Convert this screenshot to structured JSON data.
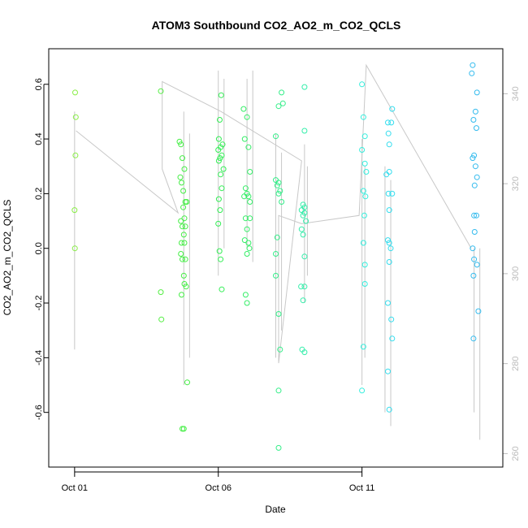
{
  "chart_data": {
    "type": "scatter",
    "title": "ATOM3 Southbound CO2_AO2_m_CO2_QCLS",
    "xlabel": "Date",
    "ylabel": "CO2_AO2_m_CO2_QCLS",
    "x_ticks": [
      {
        "day": 1,
        "label": "Oct 01"
      },
      {
        "day": 6,
        "label": "Oct 06"
      },
      {
        "day": 11,
        "label": "Oct 11"
      }
    ],
    "xlim_day": [
      0.1,
      15.9
    ],
    "ylim": [
      -0.8,
      0.73
    ],
    "y_ticks": [
      -0.6,
      -0.4,
      -0.2,
      0.0,
      0.2,
      0.4,
      0.6
    ],
    "y_tick_labels": [
      "-0.6",
      "-0.4",
      "-0.2",
      "0.0",
      "0.2",
      "0.4",
      "0.6"
    ],
    "right_axis": {
      "ylim": [
        257,
        350
      ],
      "ticks": [
        260,
        280,
        300,
        320,
        340
      ],
      "tick_labels": [
        "260",
        "280",
        "300",
        "320",
        "340"
      ],
      "color": "#bbbbbb"
    },
    "grid": false,
    "legend": "none",
    "overlay_line": {
      "color": "#c8c8c8",
      "points": [
        [
          1.05,
          0.43
        ],
        [
          4.6,
          0.13
        ],
        [
          4.05,
          0.29
        ],
        [
          4.05,
          0.61
        ],
        [
          6.1,
          0.5
        ],
        [
          8.9,
          0.32
        ],
        [
          8.1,
          -0.42
        ],
        [
          8.1,
          0.12
        ],
        [
          8.9,
          0.09
        ],
        [
          10.9,
          0.12
        ],
        [
          11.15,
          0.67
        ],
        [
          14.8,
          0.0
        ]
      ],
      "spikes": [
        {
          "day": 1.0,
          "low": -0.37,
          "high": 0.5
        },
        {
          "day": 4.8,
          "low": -0.5,
          "high": 0.5
        },
        {
          "day": 5.0,
          "low": -0.4,
          "high": 0.42
        },
        {
          "day": 6.0,
          "low": -0.1,
          "high": 0.65
        },
        {
          "day": 6.2,
          "low": 0.0,
          "high": 0.62
        },
        {
          "day": 7.0,
          "low": 0.0,
          "high": 0.62
        },
        {
          "day": 7.2,
          "low": -0.05,
          "high": 0.65
        },
        {
          "day": 8.0,
          "low": -0.4,
          "high": 0.42
        },
        {
          "day": 8.2,
          "low": -0.3,
          "high": 0.35
        },
        {
          "day": 9.0,
          "low": -0.2,
          "high": 0.38
        },
        {
          "day": 9.1,
          "low": -0.1,
          "high": 0.3
        },
        {
          "day": 11.0,
          "low": -0.5,
          "high": 0.4
        },
        {
          "day": 11.1,
          "low": -0.4,
          "high": 0.3
        },
        {
          "day": 11.8,
          "low": -0.6,
          "high": 0.3
        },
        {
          "day": 12.0,
          "low": -0.65,
          "high": 0.25
        },
        {
          "day": 14.9,
          "low": -0.6,
          "high": 0.0
        },
        {
          "day": 15.1,
          "low": -0.7,
          "high": 0.0
        }
      ]
    },
    "groups": [
      {
        "color": "#88ee44",
        "points": [
          [
            1.02,
            0.57
          ],
          [
            1.04,
            0.48
          ],
          [
            1.03,
            0.34
          ],
          [
            1.0,
            0.14
          ],
          [
            1.01,
            0.0
          ]
        ]
      },
      {
        "color": "#55ee44",
        "points": [
          [
            4.0,
            0.575
          ],
          [
            4.0,
            -0.16
          ],
          [
            4.02,
            -0.26
          ]
        ]
      },
      {
        "color": "#44ee44",
        "points": [
          [
            4.65,
            0.39
          ],
          [
            4.7,
            0.38
          ],
          [
            4.75,
            0.33
          ],
          [
            4.82,
            0.29
          ],
          [
            4.68,
            0.26
          ],
          [
            4.72,
            0.24
          ],
          [
            4.78,
            0.21
          ],
          [
            4.85,
            0.17
          ],
          [
            4.9,
            0.17
          ],
          [
            4.78,
            0.15
          ],
          [
            4.82,
            0.11
          ],
          [
            4.7,
            0.1
          ],
          [
            4.75,
            0.08
          ],
          [
            4.85,
            0.08
          ],
          [
            4.8,
            0.05
          ],
          [
            4.72,
            0.02
          ],
          [
            4.82,
            0.02
          ],
          [
            4.7,
            -0.02
          ],
          [
            4.75,
            -0.04
          ],
          [
            4.85,
            -0.04
          ],
          [
            4.8,
            -0.1
          ],
          [
            4.82,
            -0.13
          ],
          [
            4.88,
            -0.14
          ],
          [
            4.72,
            -0.17
          ],
          [
            4.92,
            -0.49
          ],
          [
            4.75,
            -0.66
          ],
          [
            4.8,
            -0.66
          ]
        ]
      },
      {
        "color": "#33ee55",
        "points": [
          [
            6.1,
            0.56
          ],
          [
            6.05,
            0.47
          ],
          [
            6.02,
            0.4
          ],
          [
            6.15,
            0.38
          ],
          [
            6.08,
            0.37
          ],
          [
            6.0,
            0.36
          ],
          [
            6.12,
            0.34
          ],
          [
            6.06,
            0.33
          ],
          [
            6.02,
            0.32
          ],
          [
            6.18,
            0.29
          ],
          [
            6.08,
            0.27
          ],
          [
            6.12,
            0.22
          ],
          [
            6.02,
            0.18
          ],
          [
            6.06,
            0.14
          ],
          [
            6.0,
            0.09
          ],
          [
            6.04,
            -0.01
          ],
          [
            6.08,
            -0.04
          ],
          [
            6.12,
            -0.15
          ]
        ]
      },
      {
        "color": "#33ee66",
        "points": [
          [
            6.88,
            0.51
          ],
          [
            7.0,
            0.48
          ],
          [
            6.92,
            0.4
          ],
          [
            7.05,
            0.37
          ],
          [
            7.1,
            0.28
          ],
          [
            6.95,
            0.22
          ],
          [
            7.0,
            0.2
          ],
          [
            6.9,
            0.19
          ],
          [
            7.05,
            0.19
          ],
          [
            7.1,
            0.17
          ],
          [
            6.95,
            0.11
          ],
          [
            7.1,
            0.11
          ],
          [
            7.0,
            0.07
          ],
          [
            6.92,
            0.03
          ],
          [
            7.05,
            0.02
          ],
          [
            7.08,
            0.0
          ],
          [
            7.0,
            -0.02
          ],
          [
            6.95,
            -0.17
          ],
          [
            7.0,
            -0.2
          ]
        ]
      },
      {
        "color": "#33ee88",
        "points": [
          [
            8.2,
            0.57
          ],
          [
            8.1,
            0.52
          ],
          [
            8.25,
            0.53
          ],
          [
            8.0,
            0.41
          ],
          [
            8.0,
            0.25
          ],
          [
            8.1,
            0.24
          ],
          [
            8.05,
            0.23
          ],
          [
            8.15,
            0.21
          ],
          [
            8.1,
            0.2
          ],
          [
            8.2,
            0.17
          ],
          [
            8.05,
            0.04
          ],
          [
            8.0,
            -0.02
          ],
          [
            8.0,
            -0.1
          ],
          [
            8.1,
            -0.24
          ],
          [
            8.15,
            -0.37
          ],
          [
            8.1,
            -0.52
          ],
          [
            8.1,
            -0.73
          ]
        ]
      },
      {
        "color": "#33eeaa",
        "points": [
          [
            9.0,
            0.59
          ],
          [
            9.0,
            0.43
          ],
          [
            8.95,
            0.16
          ],
          [
            9.0,
            0.15
          ],
          [
            8.9,
            0.14
          ],
          [
            9.0,
            0.13
          ],
          [
            8.95,
            0.12
          ],
          [
            9.05,
            0.1
          ],
          [
            8.9,
            0.07
          ],
          [
            8.95,
            0.05
          ],
          [
            9.0,
            -0.03
          ],
          [
            8.88,
            -0.14
          ],
          [
            9.0,
            -0.14
          ],
          [
            8.95,
            -0.19
          ],
          [
            8.92,
            -0.37
          ],
          [
            9.0,
            -0.38
          ]
        ]
      },
      {
        "color": "#33eedd",
        "points": [
          [
            11.0,
            0.6
          ],
          [
            11.05,
            0.48
          ],
          [
            11.1,
            0.41
          ],
          [
            11.0,
            0.36
          ],
          [
            11.1,
            0.31
          ],
          [
            11.15,
            0.28
          ],
          [
            11.05,
            0.21
          ],
          [
            11.12,
            0.19
          ],
          [
            11.08,
            0.12
          ],
          [
            11.05,
            0.02
          ],
          [
            11.1,
            -0.06
          ],
          [
            11.1,
            -0.13
          ],
          [
            11.05,
            -0.36
          ],
          [
            11.0,
            -0.52
          ]
        ]
      },
      {
        "color": "#33ddee",
        "points": [
          [
            12.05,
            0.51
          ],
          [
            11.9,
            0.46
          ],
          [
            12.02,
            0.46
          ],
          [
            11.92,
            0.42
          ],
          [
            11.95,
            0.38
          ],
          [
            11.95,
            0.28
          ],
          [
            11.85,
            0.27
          ],
          [
            11.92,
            0.2
          ],
          [
            12.05,
            0.2
          ],
          [
            11.95,
            0.14
          ],
          [
            11.9,
            0.03
          ],
          [
            11.95,
            0.02
          ],
          [
            12.0,
            0.0
          ],
          [
            11.95,
            -0.05
          ],
          [
            11.9,
            -0.2
          ],
          [
            12.02,
            -0.26
          ],
          [
            12.05,
            -0.33
          ],
          [
            11.9,
            -0.45
          ],
          [
            11.95,
            -0.59
          ]
        ]
      },
      {
        "color": "#33bbee",
        "points": [
          [
            14.85,
            0.67
          ],
          [
            14.82,
            0.64
          ],
          [
            15.0,
            0.57
          ],
          [
            14.95,
            0.5
          ],
          [
            14.88,
            0.47
          ],
          [
            14.98,
            0.44
          ],
          [
            14.9,
            0.34
          ],
          [
            14.85,
            0.33
          ],
          [
            14.95,
            0.3
          ],
          [
            15.0,
            0.26
          ],
          [
            14.92,
            0.23
          ],
          [
            14.98,
            0.12
          ],
          [
            14.9,
            0.12
          ],
          [
            14.92,
            0.06
          ],
          [
            14.85,
            0.0
          ],
          [
            14.9,
            -0.04
          ],
          [
            15.0,
            -0.06
          ],
          [
            14.88,
            -0.1
          ],
          [
            15.05,
            -0.23
          ],
          [
            14.88,
            -0.33
          ]
        ]
      }
    ]
  }
}
